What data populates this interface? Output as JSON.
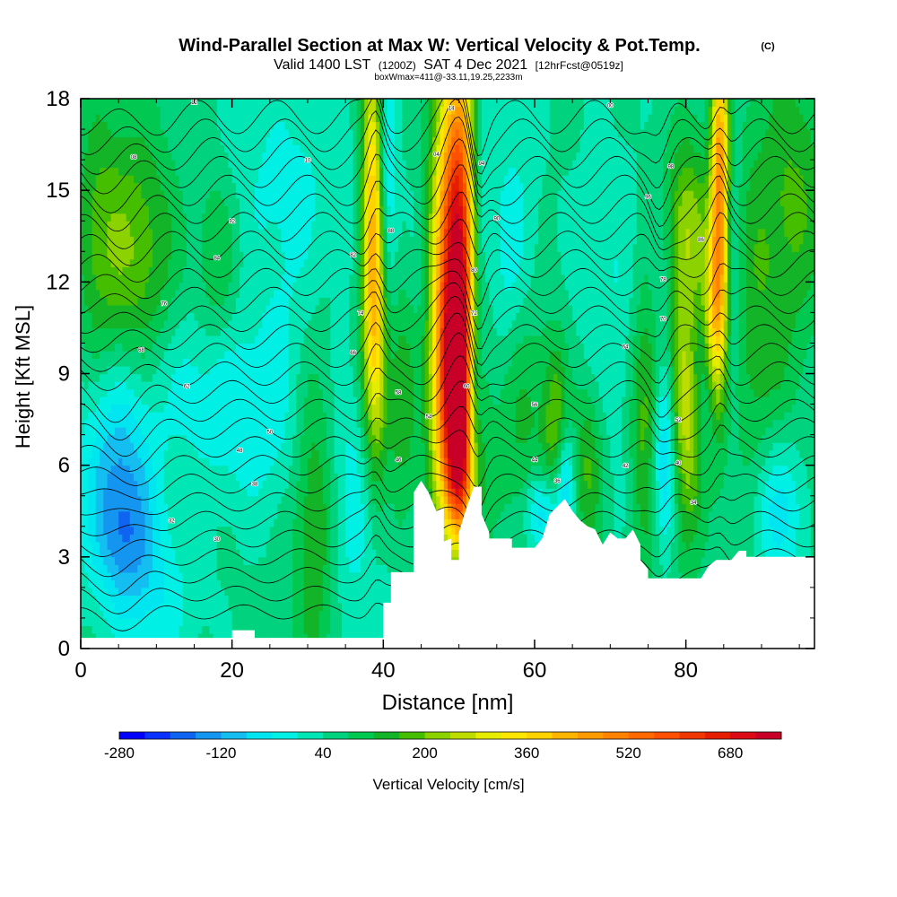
{
  "chart_data": {
    "type": "heatmap",
    "title": "Wind-Parallel Section at Max W: Vertical Velocity & Pot.Temp.",
    "title_mark": "(C)",
    "subtitle": {
      "valid_label": "Valid 1400 LST",
      "utc": "(1200Z)",
      "date": "SAT 4 Dec 2021",
      "forecast": "[12hrFcst@0519z]"
    },
    "box_note": "boxWmax=411@-33.11,19.25,2233m",
    "xlabel": "Distance [nm]",
    "ylabel": "Height [Kft MSL]",
    "xlim": [
      0,
      97
    ],
    "ylim": [
      0,
      18
    ],
    "x_ticks": [
      0,
      20,
      40,
      60,
      80
    ],
    "y_ticks": [
      0,
      3,
      6,
      9,
      12,
      15,
      18
    ],
    "colorbar": {
      "label": "Vertical Velocity [cm/s]",
      "tick_labels": [
        "-280",
        "-120",
        "40",
        "200",
        "360",
        "520",
        "680"
      ],
      "levels": [
        -280,
        -240,
        -200,
        -160,
        -120,
        -80,
        -40,
        0,
        40,
        80,
        120,
        160,
        200,
        240,
        280,
        320,
        360,
        400,
        440,
        480,
        520,
        560,
        600,
        640,
        680,
        720,
        760
      ],
      "colors": [
        "#0000ff",
        "#0a32ff",
        "#0f64f0",
        "#1496f0",
        "#14bef0",
        "#00e6f0",
        "#00f0e6",
        "#00e6b4",
        "#00d27d",
        "#00c850",
        "#14b428",
        "#46be00",
        "#8cd200",
        "#bedc00",
        "#e6ec00",
        "#ffe600",
        "#ffd200",
        "#ffb400",
        "#ff9b00",
        "#ff8200",
        "#ff6900",
        "#ff5000",
        "#f03700",
        "#e61e00",
        "#dc0a14",
        "#c80028"
      ]
    },
    "terrain_profile_kft": [
      [
        0,
        0.35
      ],
      [
        20,
        0.35
      ],
      [
        20,
        0.6
      ],
      [
        23,
        0.6
      ],
      [
        23,
        0.35
      ],
      [
        40,
        0.35
      ],
      [
        40,
        1.5
      ],
      [
        41,
        1.5
      ],
      [
        41,
        2.5
      ],
      [
        44,
        2.5
      ],
      [
        44,
        5.1
      ],
      [
        45,
        5.5
      ],
      [
        46,
        5.1
      ],
      [
        47,
        4.5
      ],
      [
        48,
        4.6
      ],
      [
        48,
        3.5
      ],
      [
        49,
        3.6
      ],
      [
        49,
        2.9
      ],
      [
        50,
        2.9
      ],
      [
        50,
        3.8
      ],
      [
        51,
        4.6
      ],
      [
        52,
        5.3
      ],
      [
        53,
        5.3
      ],
      [
        53,
        4.4
      ],
      [
        54,
        3.8
      ],
      [
        54,
        3.6
      ],
      [
        57,
        3.6
      ],
      [
        57,
        3.3
      ],
      [
        60,
        3.3
      ],
      [
        61,
        3.6
      ],
      [
        62,
        4.4
      ],
      [
        64,
        4.9
      ],
      [
        65,
        4.5
      ],
      [
        66,
        4.2
      ],
      [
        67,
        4.0
      ],
      [
        68,
        3.9
      ],
      [
        69,
        3.4
      ],
      [
        70,
        3.8
      ],
      [
        71,
        3.6
      ],
      [
        72,
        3.6
      ],
      [
        73,
        3.9
      ],
      [
        74,
        3.4
      ],
      [
        74,
        2.9
      ],
      [
        75,
        2.6
      ],
      [
        75,
        2.3
      ],
      [
        78,
        2.3
      ],
      [
        82,
        2.3
      ],
      [
        83,
        2.7
      ],
      [
        84,
        2.9
      ],
      [
        86,
        2.9
      ],
      [
        87,
        3.2
      ],
      [
        88,
        3.2
      ],
      [
        88,
        3.0
      ],
      [
        97,
        3.0
      ]
    ],
    "velocity_features": [
      {
        "x": 5,
        "y": 6.0,
        "sx": 3.5,
        "sy": 2.4,
        "w": -160
      },
      {
        "x": 6,
        "y": 3.5,
        "sx": 3,
        "sy": 1.5,
        "w": -110
      },
      {
        "x": 10,
        "y": 1.5,
        "sx": 4,
        "sy": 1.5,
        "w": -70
      },
      {
        "x": 7,
        "y": 13,
        "sx": 4,
        "sy": 3,
        "w": 150
      },
      {
        "x": 2,
        "y": 14,
        "sx": 2,
        "sy": 3,
        "w": 70
      },
      {
        "x": 18,
        "y": 12.5,
        "sx": 2,
        "sy": 2.5,
        "w": 80
      },
      {
        "x": 16,
        "y": 9,
        "sx": 5,
        "sy": 2,
        "w": -70
      },
      {
        "x": 23,
        "y": 7,
        "sx": 5,
        "sy": 2,
        "w": -60
      },
      {
        "x": 26,
        "y": 16,
        "sx": 8,
        "sy": 2,
        "w": -40
      },
      {
        "x": 31,
        "y": 4.5,
        "sx": 2,
        "sy": 4,
        "w": 130
      },
      {
        "x": 28,
        "y": 12,
        "sx": 4,
        "sy": 3,
        "w": -50
      },
      {
        "x": 36,
        "y": 5,
        "sx": 3,
        "sy": 3,
        "w": -80
      },
      {
        "x": 38.5,
        "y": 14.5,
        "sx": 0.9,
        "sy": 4,
        "w": 330
      },
      {
        "x": 39.5,
        "y": 10,
        "sx": 1.2,
        "sy": 3,
        "w": 200
      },
      {
        "x": 40.5,
        "y": 12,
        "sx": 1,
        "sy": 5,
        "w": -130
      },
      {
        "x": 42,
        "y": 8,
        "sx": 3,
        "sy": 3,
        "w": 120
      },
      {
        "x": 45,
        "y": 10,
        "sx": 1.5,
        "sy": 4,
        "w": -60
      },
      {
        "x": 50,
        "y": 13,
        "sx": 2.2,
        "sy": 4.5,
        "w": 700
      },
      {
        "x": 49.5,
        "y": 8,
        "sx": 1.8,
        "sy": 2.8,
        "w": 480
      },
      {
        "x": 50.5,
        "y": 5.5,
        "sx": 1.5,
        "sy": 1.5,
        "w": 250
      },
      {
        "x": 52.5,
        "y": 14,
        "sx": 1.1,
        "sy": 4,
        "w": -240
      },
      {
        "x": 52,
        "y": 8,
        "sx": 0.8,
        "sy": 3,
        "w": -200
      },
      {
        "x": 54,
        "y": 11,
        "sx": 3,
        "sy": 4,
        "w": -60
      },
      {
        "x": 58,
        "y": 8,
        "sx": 3,
        "sy": 3,
        "w": 100
      },
      {
        "x": 57,
        "y": 13,
        "sx": 2.5,
        "sy": 3,
        "w": -60
      },
      {
        "x": 63,
        "y": 7,
        "sx": 1.2,
        "sy": 2,
        "w": 160
      },
      {
        "x": 64,
        "y": 5.5,
        "sx": 1,
        "sy": 1.5,
        "w": -180
      },
      {
        "x": 61,
        "y": 4.5,
        "sx": 1.5,
        "sy": 1,
        "w": -150
      },
      {
        "x": 67,
        "y": 6,
        "sx": 1.5,
        "sy": 2,
        "w": 130
      },
      {
        "x": 70,
        "y": 11,
        "sx": 4,
        "sy": 4,
        "w": -50
      },
      {
        "x": 75,
        "y": 8,
        "sx": 1.5,
        "sy": 3.5,
        "w": 180
      },
      {
        "x": 77,
        "y": 6.5,
        "sx": 1.3,
        "sy": 2.2,
        "w": -200
      },
      {
        "x": 76,
        "y": 12,
        "sx": 1.5,
        "sy": 2,
        "w": -60
      },
      {
        "x": 80,
        "y": 8,
        "sx": 1.5,
        "sy": 3,
        "w": 240
      },
      {
        "x": 80,
        "y": 14,
        "sx": 2,
        "sy": 2,
        "w": 150
      },
      {
        "x": 84.5,
        "y": 15,
        "sx": 0.8,
        "sy": 4,
        "w": 420
      },
      {
        "x": 83.5,
        "y": 11,
        "sx": 1,
        "sy": 2,
        "w": 200
      },
      {
        "x": 82,
        "y": 9,
        "sx": 1.5,
        "sy": 2,
        "w": -80
      },
      {
        "x": 86,
        "y": 12,
        "sx": 1.2,
        "sy": 4,
        "w": -90
      },
      {
        "x": 89,
        "y": 11,
        "sx": 4,
        "sy": 5,
        "w": 100
      },
      {
        "x": 92,
        "y": 4.5,
        "sx": 2.5,
        "sy": 1.8,
        "w": -130
      },
      {
        "x": 95,
        "y": 15,
        "sx": 3,
        "sy": 3,
        "w": 90
      }
    ],
    "theta_contours": {
      "base_height_kft": [
        1.2,
        1.8,
        2.4,
        3.0,
        3.6,
        4.2,
        4.8,
        5.4,
        6.0,
        6.6,
        7.2,
        7.8,
        8.4,
        9.0,
        9.6,
        10.2,
        10.8,
        11.4,
        12.0,
        12.6,
        13.2,
        13.8,
        14.4,
        15.0,
        15.6,
        16.2,
        16.8,
        17.4
      ]
    },
    "theta_labels": [
      {
        "x": 49,
        "y": 17.7,
        "text": "14"
      },
      {
        "x": 15,
        "y": 17.9,
        "text": "12"
      },
      {
        "x": 30,
        "y": 16.0,
        "text": "10"
      },
      {
        "x": 7,
        "y": 16.1,
        "text": "08"
      },
      {
        "x": 47,
        "y": 16.2,
        "text": "04"
      },
      {
        "x": 70,
        "y": 17.8,
        "text": "00"
      },
      {
        "x": 78,
        "y": 15.8,
        "text": "98"
      },
      {
        "x": 75,
        "y": 14.8,
        "text": "96"
      },
      {
        "x": 53,
        "y": 15.9,
        "text": "94"
      },
      {
        "x": 20,
        "y": 14.0,
        "text": "92"
      },
      {
        "x": 55,
        "y": 14.1,
        "text": "90"
      },
      {
        "x": 41,
        "y": 13.7,
        "text": "88"
      },
      {
        "x": 82,
        "y": 13.4,
        "text": "86"
      },
      {
        "x": 18,
        "y": 12.8,
        "text": "84"
      },
      {
        "x": 36,
        "y": 12.9,
        "text": "82"
      },
      {
        "x": 52,
        "y": 12.4,
        "text": "80"
      },
      {
        "x": 77,
        "y": 12.1,
        "text": "78"
      },
      {
        "x": 11,
        "y": 11.3,
        "text": "76"
      },
      {
        "x": 37,
        "y": 11.0,
        "text": "74"
      },
      {
        "x": 52,
        "y": 11.0,
        "text": "72"
      },
      {
        "x": 77,
        "y": 10.8,
        "text": "70"
      },
      {
        "x": 8,
        "y": 9.8,
        "text": "68"
      },
      {
        "x": 36,
        "y": 9.7,
        "text": "66"
      },
      {
        "x": 72,
        "y": 9.9,
        "text": "64"
      },
      {
        "x": 14,
        "y": 8.6,
        "text": "62"
      },
      {
        "x": 51,
        "y": 8.6,
        "text": "60"
      },
      {
        "x": 42,
        "y": 8.4,
        "text": "58"
      },
      {
        "x": 60,
        "y": 8.0,
        "text": "56"
      },
      {
        "x": 46,
        "y": 7.6,
        "text": "54"
      },
      {
        "x": 79,
        "y": 7.5,
        "text": "52"
      },
      {
        "x": 25,
        "y": 7.1,
        "text": "50"
      },
      {
        "x": 21,
        "y": 6.5,
        "text": "48"
      },
      {
        "x": 42,
        "y": 6.2,
        "text": "46"
      },
      {
        "x": 60,
        "y": 6.2,
        "text": "44"
      },
      {
        "x": 72,
        "y": 6.0,
        "text": "42"
      },
      {
        "x": 79,
        "y": 6.1,
        "text": "40"
      },
      {
        "x": 23,
        "y": 5.4,
        "text": "38"
      },
      {
        "x": 63,
        "y": 5.5,
        "text": "36"
      },
      {
        "x": 81,
        "y": 4.8,
        "text": "34"
      },
      {
        "x": 12,
        "y": 4.2,
        "text": "32"
      },
      {
        "x": 18,
        "y": 3.6,
        "text": "30"
      }
    ],
    "grid": false,
    "legend": "bottom"
  }
}
